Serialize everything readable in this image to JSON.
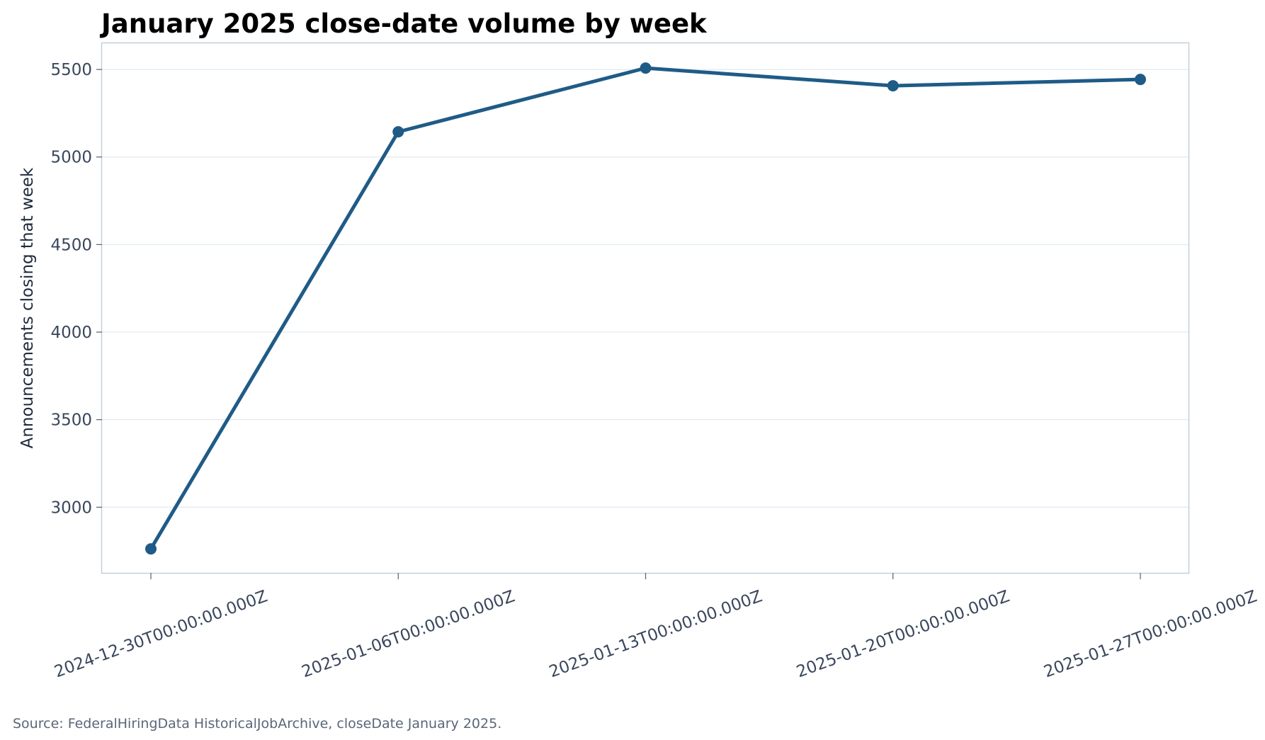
{
  "chart_data": {
    "type": "line",
    "title": "January 2025 close-date volume by week",
    "xlabel": "",
    "ylabel": "Announcements closing that week",
    "categories": [
      "2024-12-30T00:00:00.000Z",
      "2025-01-06T00:00:00.000Z",
      "2025-01-13T00:00:00.000Z",
      "2025-01-20T00:00:00.000Z",
      "2025-01-27T00:00:00.000Z"
    ],
    "series": [
      {
        "values": [
          2762,
          5144,
          5508,
          5407,
          5443
        ]
      }
    ],
    "ylim": [
      2625,
      5650
    ],
    "yticks": [
      3000,
      3500,
      4000,
      4500,
      5000,
      5500
    ],
    "grid": "horizontal",
    "legend": "none",
    "markers": true
  },
  "footer": {
    "source": "Source: FederalHiringData HistoricalJobArchive, closeDate January 2025."
  },
  "colors": {
    "line": "#1f5b87",
    "grid": "#dfe9f1",
    "frame": "#c3d0da",
    "tick_text": "#3a475c"
  }
}
